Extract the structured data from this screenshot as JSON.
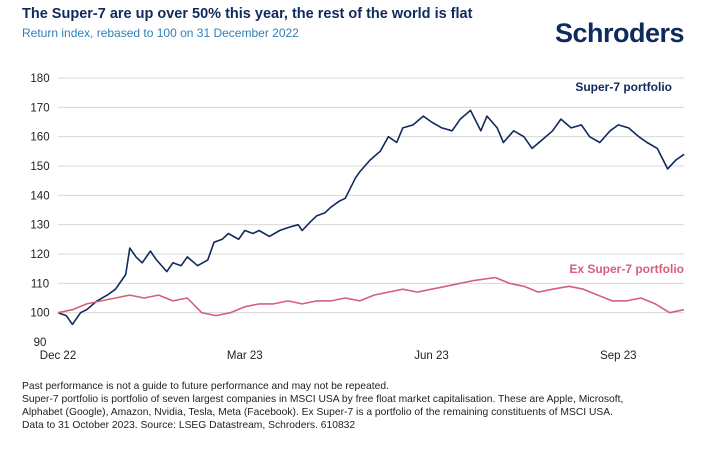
{
  "header": {
    "title": "The Super-7 are up over 50% this year, the rest of the world is flat",
    "subtitle": "Return index, rebased to 100 on 31 December 2022",
    "brand": "Schroders"
  },
  "footnotes": [
    "Past performance is not a guide to future performance and may not be repeated.",
    "Super-7 portfolio is portfolio of seven largest companies in MSCI USA by free float market capitalisation. These are Apple, Microsoft,",
    "Alphabet (Google), Amazon, Nvidia, Tesla, Meta (Facebook). Ex Super-7 is a portfolio of the remaining constituents of MSCI USA.",
    "Data to 31 October 2023. Source: LSEG Datastream, Schroders. 610832"
  ],
  "colors": {
    "super7": "#0f2a5c",
    "ex_super7": "#d4607c",
    "grid": "#d9d9d9"
  },
  "chart_data": {
    "type": "line",
    "title": "The Super-7 are up over 50% this year, the rest of the world is flat",
    "subtitle": "Return index, rebased to 100 on 31 December 2022",
    "ylim": [
      90,
      180
    ],
    "yticks": [
      90,
      100,
      110,
      120,
      130,
      140,
      150,
      160,
      170,
      180
    ],
    "x_tick_labels": [
      "Dec 22",
      "Mar 23",
      "Jun 23",
      "Sep 23"
    ],
    "x_tick_dates": [
      "2022-12-30",
      "2023-03-31",
      "2023-06-30",
      "2023-09-29"
    ],
    "x_range": [
      "2022-12-30",
      "2023-10-31"
    ],
    "grid": "horizontal",
    "series": [
      {
        "name": "Super-7 portfolio",
        "color": "#0f2a5c",
        "points": [
          [
            "2022-12-30",
            100
          ],
          [
            "2023-01-03",
            99
          ],
          [
            "2023-01-06",
            96
          ],
          [
            "2023-01-10",
            100
          ],
          [
            "2023-01-13",
            101
          ],
          [
            "2023-01-18",
            104
          ],
          [
            "2023-01-23",
            106
          ],
          [
            "2023-01-27",
            108
          ],
          [
            "2023-02-01",
            113
          ],
          [
            "2023-02-03",
            122
          ],
          [
            "2023-02-06",
            119
          ],
          [
            "2023-02-09",
            117
          ],
          [
            "2023-02-13",
            121
          ],
          [
            "2023-02-16",
            118
          ],
          [
            "2023-02-21",
            114
          ],
          [
            "2023-02-24",
            117
          ],
          [
            "2023-02-28",
            116
          ],
          [
            "2023-03-03",
            119
          ],
          [
            "2023-03-08",
            116
          ],
          [
            "2023-03-13",
            118
          ],
          [
            "2023-03-16",
            124
          ],
          [
            "2023-03-20",
            125
          ],
          [
            "2023-03-23",
            127
          ],
          [
            "2023-03-28",
            125
          ],
          [
            "2023-03-31",
            128
          ],
          [
            "2023-04-04",
            127
          ],
          [
            "2023-04-07",
            128
          ],
          [
            "2023-04-12",
            126
          ],
          [
            "2023-04-17",
            128
          ],
          [
            "2023-04-21",
            129
          ],
          [
            "2023-04-26",
            130
          ],
          [
            "2023-04-28",
            128
          ],
          [
            "2023-05-02",
            131
          ],
          [
            "2023-05-05",
            133
          ],
          [
            "2023-05-09",
            134
          ],
          [
            "2023-05-12",
            136
          ],
          [
            "2023-05-16",
            138
          ],
          [
            "2023-05-19",
            139
          ],
          [
            "2023-05-24",
            146
          ],
          [
            "2023-05-26",
            148
          ],
          [
            "2023-05-31",
            152
          ],
          [
            "2023-06-05",
            155
          ],
          [
            "2023-06-09",
            160
          ],
          [
            "2023-06-13",
            158
          ],
          [
            "2023-06-16",
            163
          ],
          [
            "2023-06-21",
            164
          ],
          [
            "2023-06-26",
            167
          ],
          [
            "2023-06-30",
            165
          ],
          [
            "2023-07-05",
            163
          ],
          [
            "2023-07-10",
            162
          ],
          [
            "2023-07-14",
            166
          ],
          [
            "2023-07-19",
            169
          ],
          [
            "2023-07-24",
            162
          ],
          [
            "2023-07-27",
            167
          ],
          [
            "2023-08-01",
            163
          ],
          [
            "2023-08-04",
            158
          ],
          [
            "2023-08-09",
            162
          ],
          [
            "2023-08-14",
            160
          ],
          [
            "2023-08-18",
            156
          ],
          [
            "2023-08-23",
            159
          ],
          [
            "2023-08-28",
            162
          ],
          [
            "2023-09-01",
            166
          ],
          [
            "2023-09-06",
            163
          ],
          [
            "2023-09-11",
            164
          ],
          [
            "2023-09-15",
            160
          ],
          [
            "2023-09-20",
            158
          ],
          [
            "2023-09-25",
            162
          ],
          [
            "2023-09-29",
            164
          ],
          [
            "2023-10-04",
            163
          ],
          [
            "2023-10-09",
            160
          ],
          [
            "2023-10-13",
            158
          ],
          [
            "2023-10-18",
            156
          ],
          [
            "2023-10-23",
            149
          ],
          [
            "2023-10-27",
            152
          ],
          [
            "2023-10-31",
            154
          ]
        ]
      },
      {
        "name": "Ex Super-7 portfolio",
        "color": "#d4607c",
        "points": [
          [
            "2022-12-30",
            100
          ],
          [
            "2023-01-06",
            101
          ],
          [
            "2023-01-13",
            103
          ],
          [
            "2023-01-20",
            104
          ],
          [
            "2023-01-27",
            105
          ],
          [
            "2023-02-03",
            106
          ],
          [
            "2023-02-10",
            105
          ],
          [
            "2023-02-17",
            106
          ],
          [
            "2023-02-24",
            104
          ],
          [
            "2023-03-03",
            105
          ],
          [
            "2023-03-10",
            100
          ],
          [
            "2023-03-17",
            99
          ],
          [
            "2023-03-24",
            100
          ],
          [
            "2023-03-31",
            102
          ],
          [
            "2023-04-07",
            103
          ],
          [
            "2023-04-14",
            103
          ],
          [
            "2023-04-21",
            104
          ],
          [
            "2023-04-28",
            103
          ],
          [
            "2023-05-05",
            104
          ],
          [
            "2023-05-12",
            104
          ],
          [
            "2023-05-19",
            105
          ],
          [
            "2023-05-26",
            104
          ],
          [
            "2023-06-02",
            106
          ],
          [
            "2023-06-09",
            107
          ],
          [
            "2023-06-16",
            108
          ],
          [
            "2023-06-23",
            107
          ],
          [
            "2023-06-30",
            108
          ],
          [
            "2023-07-07",
            109
          ],
          [
            "2023-07-14",
            110
          ],
          [
            "2023-07-21",
            111
          ],
          [
            "2023-07-31",
            112
          ],
          [
            "2023-08-07",
            110
          ],
          [
            "2023-08-14",
            109
          ],
          [
            "2023-08-21",
            107
          ],
          [
            "2023-08-28",
            108
          ],
          [
            "2023-09-05",
            109
          ],
          [
            "2023-09-12",
            108
          ],
          [
            "2023-09-19",
            106
          ],
          [
            "2023-09-26",
            104
          ],
          [
            "2023-10-03",
            104
          ],
          [
            "2023-10-10",
            105
          ],
          [
            "2023-10-17",
            103
          ],
          [
            "2023-10-24",
            100
          ],
          [
            "2023-10-31",
            101
          ]
        ]
      }
    ]
  }
}
